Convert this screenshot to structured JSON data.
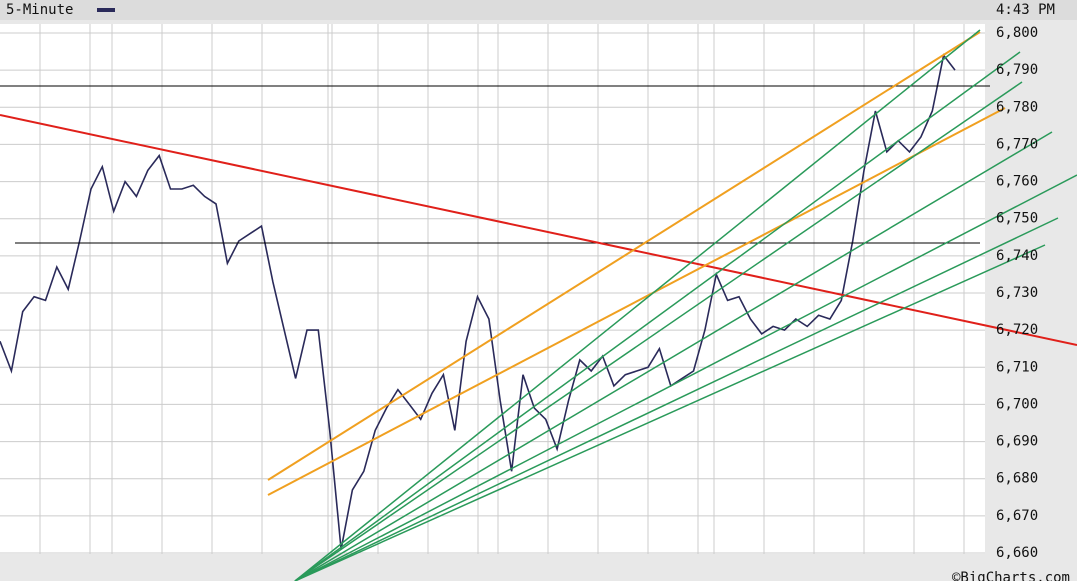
{
  "chart_data": {
    "type": "line",
    "title": "5-Minute",
    "time": "4:43 PM",
    "credit": "©BigCharts.com",
    "series": [
      {
        "color": "#2a2a5a",
        "values": [
          6717,
          6709,
          6725,
          6729,
          6728,
          6737,
          6731,
          6744,
          6758,
          6764,
          6752,
          6760,
          6756,
          6763,
          6767,
          6758,
          6758,
          6759,
          6756,
          6754,
          6738,
          6744,
          6746,
          6748,
          6733,
          6720,
          6707,
          6720,
          6720,
          6693,
          6661,
          6677,
          6682,
          6693,
          6699,
          6704,
          6700,
          6696,
          6703,
          6708,
          6693,
          6717,
          6729,
          6723,
          6701,
          6682,
          6708,
          6699,
          6696,
          6688,
          6701,
          6712,
          6709,
          6713,
          6705,
          6708,
          6709,
          6710,
          6715,
          6705,
          6707,
          6709,
          6720,
          6735,
          6728,
          6729,
          6723,
          6719,
          6721,
          6720,
          6723,
          6721,
          6724,
          6723,
          6728,
          6744,
          6763,
          6779,
          6768,
          6771,
          6768,
          6772,
          6779,
          6794,
          6790
        ]
      }
    ],
    "ylim": [
      6660,
      6800
    ],
    "yticks": [
      {
        "value": 6660,
        "label": "6,660"
      },
      {
        "value": 6670,
        "label": "6,670"
      },
      {
        "value": 6680,
        "label": "6,680"
      },
      {
        "value": 6690,
        "label": "6,690"
      },
      {
        "value": 6700,
        "label": "6,700"
      },
      {
        "value": 6710,
        "label": "6,710"
      },
      {
        "value": 6720,
        "label": "6,720"
      },
      {
        "value": 6730,
        "label": "6,730"
      },
      {
        "value": 6740,
        "label": "6,740"
      },
      {
        "value": 6750,
        "label": "6,750"
      },
      {
        "value": 6760,
        "label": "6,760"
      },
      {
        "value": 6770,
        "label": "6,770"
      },
      {
        "value": 6780,
        "label": "6,780"
      },
      {
        "value": 6790,
        "label": "6,790"
      },
      {
        "value": 6800,
        "label": "6,800"
      }
    ],
    "grid": true
  }
}
